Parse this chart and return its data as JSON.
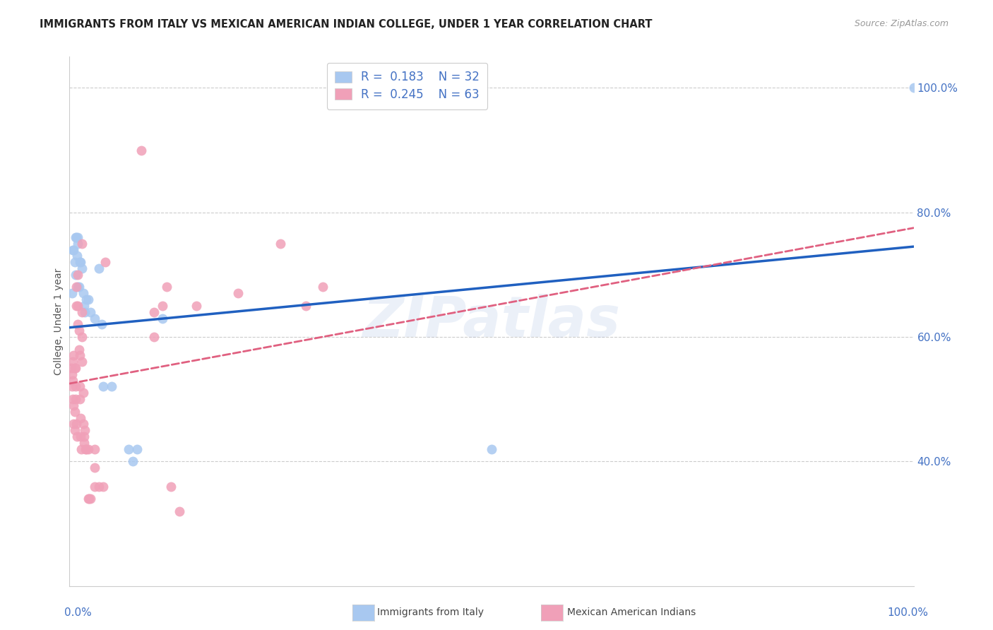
{
  "title": "IMMIGRANTS FROM ITALY VS MEXICAN AMERICAN INDIAN COLLEGE, UNDER 1 YEAR CORRELATION CHART",
  "source": "Source: ZipAtlas.com",
  "ylabel": "College, Under 1 year",
  "watermark": "ZIPatlas",
  "r_italy": "0.183",
  "n_italy": "32",
  "r_mex": "0.245",
  "n_mex": "63",
  "italy_scatter_x": [
    0.003,
    0.004,
    0.005,
    0.006,
    0.007,
    0.007,
    0.008,
    0.009,
    0.01,
    0.01,
    0.01,
    0.011,
    0.012,
    0.013,
    0.015,
    0.016,
    0.017,
    0.018,
    0.02,
    0.022,
    0.025,
    0.03,
    0.035,
    0.038,
    0.04,
    0.05,
    0.07,
    0.075,
    0.08,
    0.11,
    0.5,
    1.0
  ],
  "italy_scatter_y": [
    0.67,
    0.74,
    0.74,
    0.72,
    0.7,
    0.76,
    0.76,
    0.73,
    0.68,
    0.75,
    0.76,
    0.68,
    0.72,
    0.72,
    0.71,
    0.67,
    0.65,
    0.64,
    0.66,
    0.66,
    0.64,
    0.63,
    0.71,
    0.62,
    0.52,
    0.52,
    0.42,
    0.4,
    0.42,
    0.63,
    0.42,
    1.0
  ],
  "mex_scatter_x": [
    0.002,
    0.003,
    0.003,
    0.004,
    0.004,
    0.004,
    0.005,
    0.005,
    0.005,
    0.006,
    0.006,
    0.006,
    0.007,
    0.007,
    0.007,
    0.008,
    0.008,
    0.008,
    0.009,
    0.01,
    0.01,
    0.01,
    0.011,
    0.011,
    0.012,
    0.012,
    0.012,
    0.013,
    0.013,
    0.014,
    0.015,
    0.015,
    0.015,
    0.015,
    0.016,
    0.016,
    0.017,
    0.017,
    0.018,
    0.019,
    0.02,
    0.022,
    0.022,
    0.023,
    0.025,
    0.03,
    0.03,
    0.03,
    0.035,
    0.04,
    0.042,
    0.085,
    0.1,
    0.1,
    0.11,
    0.115,
    0.12,
    0.13,
    0.15,
    0.2,
    0.25,
    0.28,
    0.3
  ],
  "mex_scatter_y": [
    0.55,
    0.54,
    0.52,
    0.56,
    0.53,
    0.5,
    0.57,
    0.49,
    0.46,
    0.55,
    0.48,
    0.45,
    0.55,
    0.52,
    0.5,
    0.68,
    0.65,
    0.46,
    0.44,
    0.7,
    0.65,
    0.62,
    0.61,
    0.58,
    0.57,
    0.52,
    0.5,
    0.47,
    0.44,
    0.42,
    0.75,
    0.64,
    0.6,
    0.56,
    0.51,
    0.46,
    0.44,
    0.43,
    0.45,
    0.42,
    0.42,
    0.42,
    0.34,
    0.34,
    0.34,
    0.42,
    0.39,
    0.36,
    0.36,
    0.36,
    0.72,
    0.9,
    0.6,
    0.64,
    0.65,
    0.68,
    0.36,
    0.32,
    0.65,
    0.67,
    0.75,
    0.65,
    0.68
  ],
  "italy_trend_x": [
    0.0,
    1.0
  ],
  "italy_trend_y": [
    0.615,
    0.745
  ],
  "mex_trend_x": [
    0.0,
    1.0
  ],
  "mex_trend_y": [
    0.525,
    0.775
  ],
  "italy_dot_color": "#a8c8f0",
  "italy_line_color": "#2060c0",
  "mex_dot_color": "#f0a0b8",
  "mex_line_color": "#e06080",
  "legend_text_color": "#4472c4",
  "ytick_vals": [
    0.4,
    0.6,
    0.8,
    1.0
  ],
  "ytick_labels": [
    "40.0%",
    "60.0%",
    "80.0%",
    "100.0%"
  ],
  "xlim": [
    0.0,
    1.0
  ],
  "ylim": [
    0.2,
    1.05
  ],
  "grid_color": "#cccccc",
  "tick_color": "#4472c4",
  "bg_color": "#ffffff",
  "title_color": "#222222",
  "source_color": "#999999",
  "ylabel_color": "#555555",
  "bottom_label_italy": "Immigrants from Italy",
  "bottom_label_mex": "Mexican American Indians"
}
